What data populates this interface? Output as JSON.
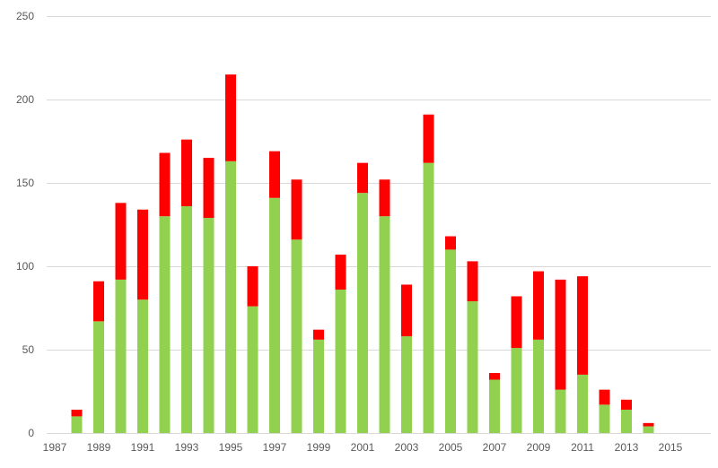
{
  "chart_data": {
    "type": "bar",
    "stacked": true,
    "x": [
      1987,
      1988,
      1989,
      1990,
      1991,
      1992,
      1993,
      1994,
      1995,
      1996,
      1997,
      1998,
      1999,
      2000,
      2001,
      2002,
      2003,
      2004,
      2005,
      2006,
      2007,
      2008,
      2009,
      2010,
      2011,
      2012,
      2013,
      2014,
      2015
    ],
    "x_tick_labels": [
      "1987",
      "1989",
      "1991",
      "1993",
      "1995",
      "1997",
      "1999",
      "2001",
      "2003",
      "2005",
      "2007",
      "2009",
      "2011",
      "2013",
      "2015"
    ],
    "series": [
      {
        "color": "#92d050",
        "values": [
          0,
          10,
          67,
          92,
          80,
          130,
          136,
          129,
          163,
          76,
          141,
          116,
          56,
          86,
          144,
          130,
          58,
          162,
          110,
          79,
          32,
          51,
          56,
          26,
          35,
          17,
          14,
          4,
          0
        ]
      },
      {
        "color": "#ff0000",
        "values": [
          0,
          4,
          24,
          46,
          54,
          38,
          40,
          36,
          52,
          24,
          28,
          36,
          6,
          21,
          18,
          22,
          31,
          29,
          8,
          24,
          4,
          31,
          41,
          66,
          59,
          9,
          6,
          2,
          0
        ]
      }
    ],
    "xlabel": "",
    "ylabel": "",
    "ylim": [
      0,
      250
    ],
    "y_ticks": [
      0,
      50,
      100,
      150,
      200,
      250
    ],
    "grid": true,
    "legend": "none"
  }
}
